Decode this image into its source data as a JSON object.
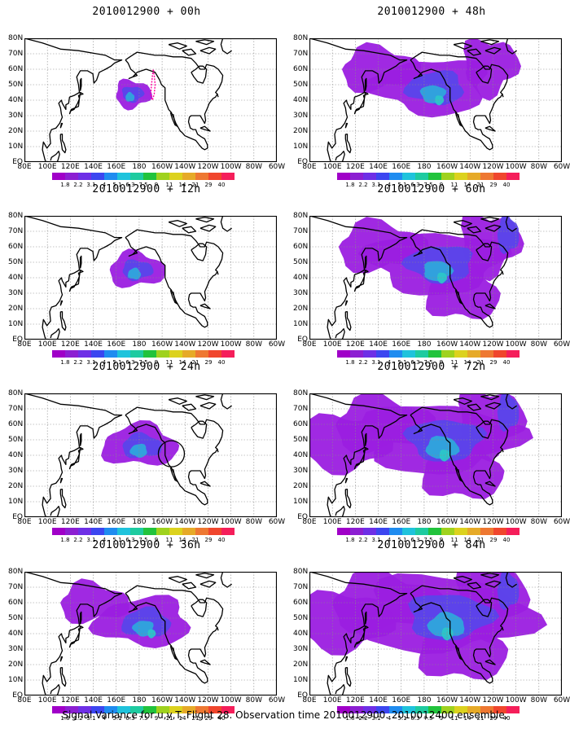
{
  "panels": [
    {
      "title": "2010012900 + 00h",
      "level": 0
    },
    {
      "title": "2010012900 + 48h",
      "level": 4
    },
    {
      "title": "2010012900 + 12h",
      "level": 1
    },
    {
      "title": "2010012900 + 60h",
      "level": 5
    },
    {
      "title": "2010012900 + 24h",
      "level": 2
    },
    {
      "title": "2010012900 + 72h",
      "level": 6
    },
    {
      "title": "2010012900 + 36h",
      "level": 3
    },
    {
      "title": "2010012900 + 84h",
      "level": 7
    }
  ],
  "lat_labels": [
    "80N",
    "70N",
    "60N",
    "50N",
    "40N",
    "30N",
    "20N",
    "10N",
    "EQ"
  ],
  "lon_labels": [
    "80E",
    "100E",
    "120E",
    "140E",
    "160E",
    "180",
    "160W",
    "140W",
    "120W",
    "100W",
    "80W",
    "60W"
  ],
  "colorbar": {
    "labels": [
      "1.8",
      "2.2",
      "3.1",
      "4",
      "5.1",
      "6.3",
      "7.5",
      "9",
      "11",
      "14",
      "21",
      "29",
      "40"
    ],
    "colors": [
      "#a000c8",
      "#8c1fd2",
      "#6e2fe6",
      "#3c46f0",
      "#1f8cf0",
      "#1fc3dc",
      "#1ecba0",
      "#21c33c",
      "#9fd21e",
      "#dcd21e",
      "#e6aa28",
      "#ee7832",
      "#f0462d",
      "#f51e5a"
    ]
  },
  "caption": "Signal Variance for u,v,T. Flight 28. Observation time 2010012900. 2010012400 ensemble.",
  "colors": {
    "coast": "#000000",
    "grid": "#8a8a8a",
    "flight_track": "#ff00a0",
    "low": "#9b1de0",
    "mid": "#5a45ea",
    "high": "#2ea6dc",
    "top": "#2cc6c8"
  }
}
